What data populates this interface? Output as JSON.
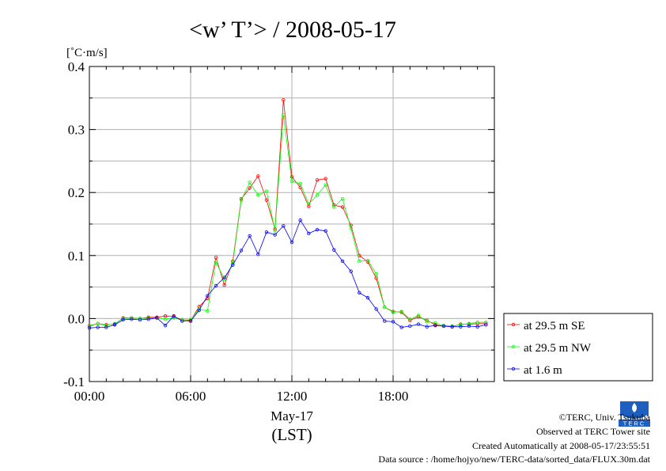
{
  "chart_data": {
    "type": "line",
    "title": "<w’ T’> / 2008-05-17",
    "ylabel": "[˚C·m/s]",
    "xlabel": "May-17",
    "xlabel2": "(LST)",
    "ylim": [
      -0.1,
      0.4
    ],
    "yticks": [
      "-0.1",
      "0.0",
      "0.1",
      "0.2",
      "0.3",
      "0.4"
    ],
    "xticks": [
      "00:00",
      "06:00",
      "12:00",
      "18:00"
    ],
    "x_hours": [
      0.0,
      0.5,
      1.0,
      1.5,
      2.0,
      2.5,
      3.0,
      3.5,
      4.0,
      4.5,
      5.0,
      5.5,
      6.0,
      6.5,
      7.0,
      7.5,
      8.0,
      8.5,
      9.0,
      9.5,
      10.0,
      10.5,
      11.0,
      11.5,
      12.0,
      12.5,
      13.0,
      13.5,
      14.0,
      14.5,
      15.0,
      15.5,
      16.0,
      16.5,
      17.0,
      17.5,
      18.0,
      18.5,
      19.0,
      19.5,
      20.0,
      20.5,
      21.0,
      21.5,
      22.0,
      22.5,
      23.0,
      23.5
    ],
    "grid": true,
    "legend_position": "right",
    "series": [
      {
        "name": "at 29.5 m SE",
        "color": "#ff0000",
        "values": [
          -0.012,
          -0.008,
          -0.01,
          -0.009,
          0.001,
          0.001,
          0.0,
          0.002,
          0.002,
          0.004,
          0.003,
          -0.002,
          -0.003,
          0.019,
          0.032,
          0.097,
          0.053,
          0.091,
          0.19,
          0.207,
          0.226,
          0.188,
          0.142,
          0.347,
          0.225,
          0.208,
          0.178,
          0.22,
          0.222,
          0.18,
          0.177,
          0.148,
          0.1,
          0.09,
          0.064,
          0.018,
          0.011,
          0.01,
          -0.003,
          0.003,
          -0.003,
          -0.01,
          -0.012,
          -0.013,
          -0.009,
          -0.009,
          -0.008,
          -0.008
        ]
      },
      {
        "name": "at 29.5 m NW",
        "color": "#00ff00",
        "values": [
          -0.011,
          -0.008,
          -0.011,
          -0.008,
          0.0,
          0.001,
          0.0,
          0.001,
          0.001,
          -0.001,
          0.001,
          -0.002,
          -0.002,
          0.015,
          0.012,
          0.09,
          0.062,
          0.088,
          0.188,
          0.216,
          0.196,
          0.202,
          0.14,
          0.323,
          0.218,
          0.214,
          0.182,
          0.196,
          0.212,
          0.177,
          0.19,
          0.143,
          0.091,
          0.092,
          0.071,
          0.018,
          0.01,
          0.011,
          -0.001,
          0.005,
          -0.005,
          -0.007,
          -0.011,
          -0.012,
          -0.01,
          -0.008,
          -0.006,
          -0.006
        ]
      },
      {
        "name": "at 1.6 m",
        "color": "#0000ff",
        "values": [
          -0.015,
          -0.014,
          -0.014,
          -0.01,
          -0.002,
          -0.001,
          -0.002,
          -0.001,
          0.001,
          -0.011,
          0.004,
          -0.004,
          -0.004,
          0.013,
          0.036,
          0.052,
          0.065,
          0.085,
          0.108,
          0.131,
          0.102,
          0.137,
          0.133,
          0.147,
          0.121,
          0.156,
          0.135,
          0.141,
          0.139,
          0.109,
          0.091,
          0.075,
          0.041,
          0.033,
          0.015,
          -0.004,
          -0.005,
          -0.014,
          -0.012,
          -0.009,
          -0.013,
          -0.011,
          -0.012,
          -0.013,
          -0.013,
          -0.012,
          -0.013,
          -0.01
        ]
      }
    ]
  },
  "footer": {
    "line1": "©TERC, Univ. Tsukuba",
    "line2": "Observed at TERC Tower site",
    "line3": "Created Automatically at 2008-05-17/23:55:51",
    "line4": "Data source : /home/hojyo/new/TERC-data/sorted_data/FLUX.30m.dat"
  },
  "logo": {
    "text": "TERC",
    "color": "#1f5fbf"
  }
}
